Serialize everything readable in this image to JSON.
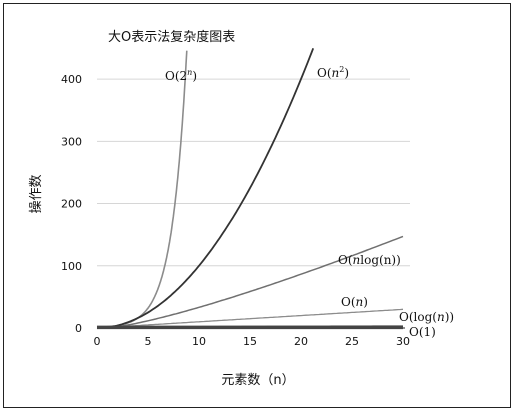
{
  "chart_data": {
    "type": "line",
    "title": "大O表示法复杂度图表",
    "xlabel": "元素数（n）",
    "ylabel": "操作数",
    "xlim": [
      0,
      30
    ],
    "ylim": [
      0,
      450
    ],
    "xticks": [
      "0",
      "5",
      "10",
      "15",
      "20",
      "25",
      "30"
    ],
    "yticks": [
      "0",
      "100",
      "200",
      "300",
      "400"
    ],
    "grid": "horizontal",
    "series": [
      {
        "name": "O(2ⁿ)",
        "label": {
          "prefix": "O(2",
          "sup": "n",
          "suffix": ")"
        },
        "x": [
          0,
          1,
          2,
          3,
          4,
          5,
          6,
          7,
          8,
          8.8
        ],
        "y": [
          1,
          2,
          4,
          8,
          16,
          32,
          64,
          128,
          256,
          446
        ],
        "color": "#8c8c8c"
      },
      {
        "name": "O(n²)",
        "label": {
          "prefix": "O(",
          "italic": "n",
          "sup": "2",
          "suffix": ")"
        },
        "x": [
          0,
          2,
          4,
          6,
          8,
          10,
          12,
          14,
          16,
          18,
          20,
          21.2
        ],
        "y": [
          0,
          4,
          16,
          36,
          64,
          100,
          144,
          196,
          256,
          324,
          400,
          449
        ],
        "color": "#333333"
      },
      {
        "name": "O(nlog(n))",
        "label": {
          "prefix": "O(",
          "italic": "n",
          "suffix": "log(n))"
        },
        "x": [
          0,
          5,
          10,
          15,
          20,
          25,
          30
        ],
        "y": [
          0,
          11.6,
          33.2,
          58.6,
          86.4,
          116.1,
          147.2
        ],
        "color": "#707070"
      },
      {
        "name": "O(n)",
        "label": {
          "prefix": "O(",
          "italic": "n",
          "suffix": ")"
        },
        "x": [
          0,
          30
        ],
        "y": [
          0,
          30
        ],
        "color": "#8c8c8c"
      },
      {
        "name": "O(log(n))",
        "label": {
          "prefix": "O(log(",
          "italic": "n",
          "suffix": "))"
        },
        "x": [
          1,
          5,
          10,
          15,
          20,
          25,
          30
        ],
        "y": [
          0,
          2.3,
          3.3,
          3.9,
          4.3,
          4.6,
          4.9
        ],
        "color": "#8c8c8c"
      },
      {
        "name": "O(1)",
        "label": {
          "prefix": "O(1)"
        },
        "x": [
          0,
          30
        ],
        "y": [
          1,
          1
        ],
        "color": "#444444"
      }
    ]
  }
}
